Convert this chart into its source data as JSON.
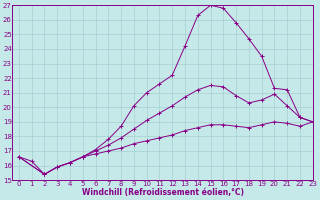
{
  "xlabel": "Windchill (Refroidissement éolien,°C)",
  "xlim": [
    -0.5,
    23
  ],
  "ylim": [
    15,
    27
  ],
  "background_color": "#c5e8e8",
  "grid_color": "#a8d0d0",
  "line_color": "#880088",
  "curve1_x": [
    0,
    1,
    2,
    3,
    4,
    5,
    6,
    7,
    8,
    9,
    10,
    11,
    12,
    13,
    14,
    15,
    16,
    17,
    18,
    19,
    20,
    21,
    22,
    23
  ],
  "curve1_y": [
    16.6,
    16.3,
    15.4,
    15.9,
    16.2,
    16.6,
    17.1,
    17.8,
    18.7,
    20.1,
    21.0,
    21.6,
    22.2,
    24.2,
    26.3,
    27.0,
    26.8,
    25.8,
    24.7,
    23.5,
    21.3,
    21.2,
    19.3,
    19.0
  ],
  "curve2_x": [
    0,
    2,
    3,
    4,
    5,
    6,
    7,
    8,
    9,
    10,
    11,
    12,
    13,
    14,
    15,
    16,
    17,
    18,
    19,
    20,
    21,
    22,
    23
  ],
  "curve2_y": [
    16.6,
    15.4,
    15.9,
    16.2,
    16.6,
    17.0,
    17.4,
    17.9,
    18.5,
    19.1,
    19.6,
    20.1,
    20.7,
    21.2,
    21.5,
    21.4,
    20.8,
    20.3,
    20.5,
    20.9,
    20.1,
    19.3,
    19.0
  ],
  "curve3_x": [
    0,
    2,
    3,
    4,
    5,
    6,
    7,
    8,
    9,
    10,
    11,
    12,
    13,
    14,
    15,
    16,
    17,
    18,
    19,
    20,
    21,
    22,
    23
  ],
  "curve3_y": [
    16.6,
    15.4,
    15.9,
    16.2,
    16.6,
    16.8,
    17.0,
    17.2,
    17.5,
    17.7,
    17.9,
    18.1,
    18.4,
    18.6,
    18.8,
    18.8,
    18.7,
    18.6,
    18.8,
    19.0,
    18.9,
    18.7,
    19.0
  ],
  "xticks": [
    0,
    1,
    2,
    3,
    4,
    5,
    6,
    7,
    8,
    9,
    10,
    11,
    12,
    13,
    14,
    15,
    16,
    17,
    18,
    19,
    20,
    21,
    22,
    23
  ],
  "yticks": [
    15,
    16,
    17,
    18,
    19,
    20,
    21,
    22,
    23,
    24,
    25,
    26,
    27
  ],
  "tick_font_size": 5.0,
  "xlabel_font_size": 5.5
}
